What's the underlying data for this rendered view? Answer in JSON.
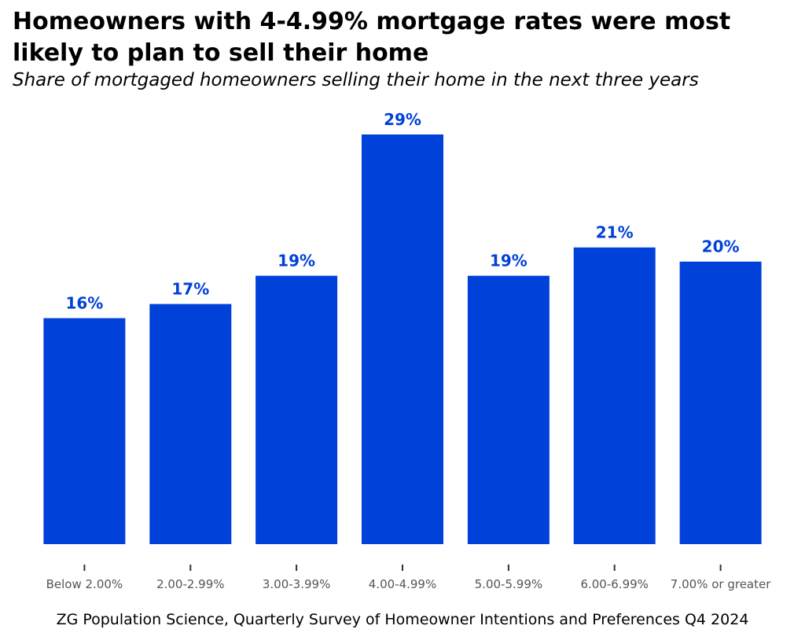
{
  "header": {
    "title": "Homeowners with 4-4.99% mortgage rates were most\n likely to plan to sell their home",
    "subtitle": "Share of mortgaged homeowners selling their home in the next three years"
  },
  "footer": {
    "caption": "ZG Population Science, Quarterly Survey of Homeowner Intentions and Preferences Q4 2024"
  },
  "colors": {
    "bar": "#0041D9",
    "label": "#0041D9",
    "tick_label": "#555555",
    "tick": "#333333"
  },
  "chart_data": {
    "type": "bar",
    "title": "Homeowners with 4-4.99% mortgage rates were most\n likely to plan to sell their home",
    "subtitle": "Share of mortgaged homeowners selling their home in the next three years",
    "xlabel": "",
    "ylabel": "",
    "categories": [
      "Below 2.00%",
      "2.00-2.99%",
      "3.00-3.99%",
      "4.00-4.99%",
      "5.00-5.99%",
      "6.00-6.99%",
      "7.00% or greater"
    ],
    "values": [
      16,
      17,
      19,
      29,
      19,
      21,
      20
    ],
    "value_labels": [
      "16%",
      "17%",
      "19%",
      "29%",
      "19%",
      "21%",
      "20%"
    ],
    "ylim": [
      0,
      29
    ],
    "grid": false,
    "legend": "none"
  }
}
